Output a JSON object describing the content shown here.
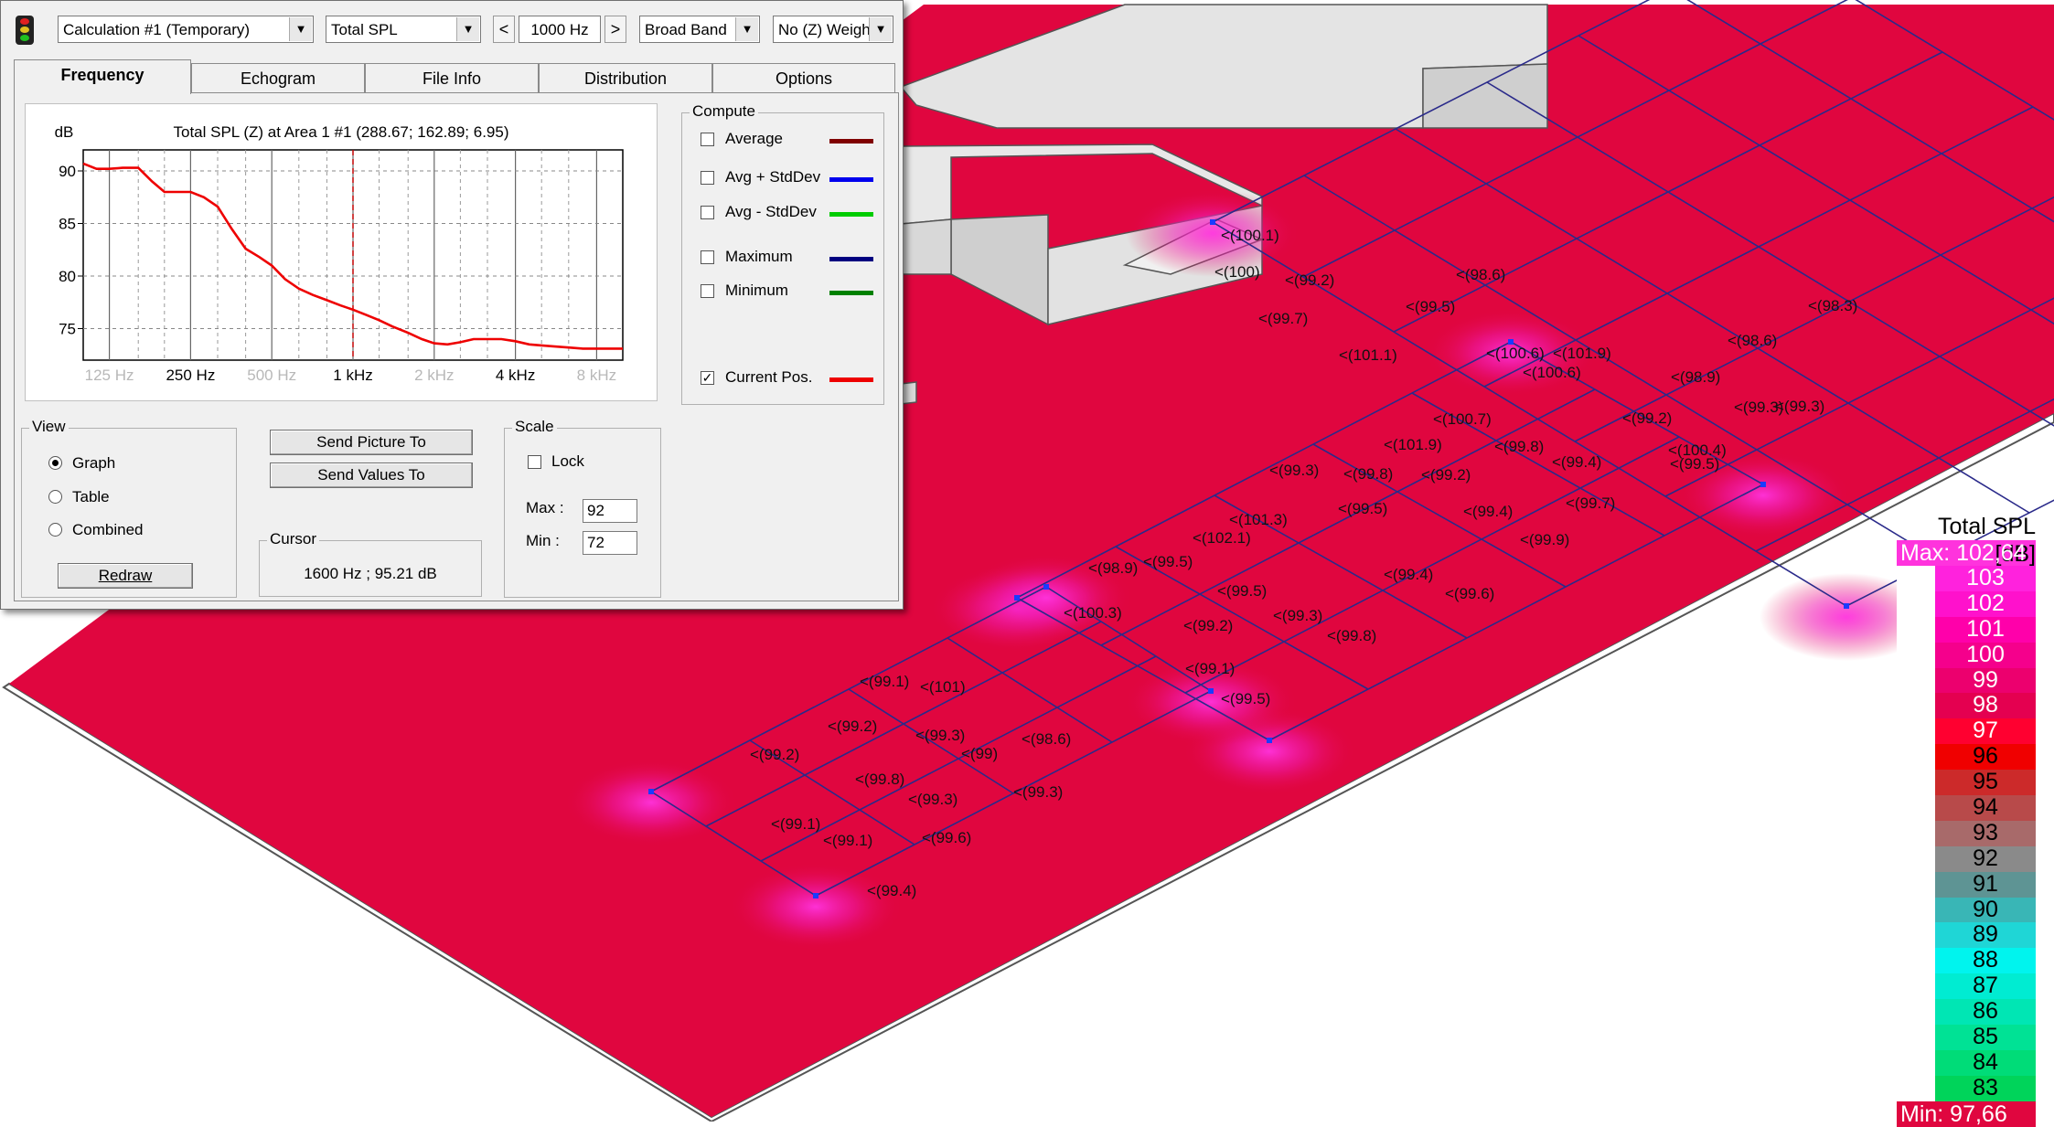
{
  "toolbar": {
    "app_icon": "traffic-light-icon",
    "calculation": "Calculation #1 (Temporary)",
    "quantity": "Total SPL",
    "frequency": "1000 Hz",
    "band": "Broad Band",
    "weighting": "No (Z) Weigh",
    "prev_label": "<",
    "next_label": ">"
  },
  "tabs": [
    {
      "label": "Frequency",
      "active": true
    },
    {
      "label": "Echogram",
      "active": false
    },
    {
      "label": "File Info",
      "active": false
    },
    {
      "label": "Distribution",
      "active": false
    },
    {
      "label": "Options",
      "active": false
    }
  ],
  "chart_data": {
    "type": "line",
    "title": "Total SPL (Z) at Area 1 #1  (288.67; 162.89; 6.95)",
    "ylabel": "dB",
    "xlabel": "",
    "x_scale": "log",
    "xlim_hz": [
      100,
      10000
    ],
    "ylim": [
      72,
      92
    ],
    "y_ticks": [
      90,
      85,
      80,
      75
    ],
    "x_ticks": [
      {
        "label": "125 Hz",
        "hz": 125,
        "dim": true
      },
      {
        "label": "250 Hz",
        "hz": 250,
        "dim": false
      },
      {
        "label": "500 Hz",
        "hz": 500,
        "dim": true
      },
      {
        "label": "1 kHz",
        "hz": 1000,
        "dim": false
      },
      {
        "label": "2 kHz",
        "hz": 2000,
        "dim": true
      },
      {
        "label": "4 kHz",
        "hz": 4000,
        "dim": false
      },
      {
        "label": "8 kHz",
        "hz": 8000,
        "dim": true
      }
    ],
    "grid": true,
    "cursor_hz": 1000,
    "series": [
      {
        "name": "Current Pos.",
        "color": "#ee0000",
        "x_hz": [
          100,
          112,
          125,
          140,
          160,
          180,
          200,
          224,
          250,
          280,
          315,
          355,
          400,
          450,
          500,
          560,
          630,
          710,
          800,
          900,
          1000,
          1120,
          1250,
          1400,
          1600,
          1800,
          2000,
          2240,
          2500,
          2800,
          3150,
          3550,
          4000,
          4500,
          5000,
          5600,
          6300,
          7100,
          8000,
          9000,
          10000
        ],
        "values": [
          90.7,
          90.2,
          90.2,
          90.3,
          90.3,
          89.0,
          88.0,
          88.0,
          88.0,
          87.5,
          86.6,
          84.5,
          82.6,
          81.8,
          81.0,
          79.7,
          78.8,
          78.2,
          77.7,
          77.2,
          76.8,
          76.3,
          75.8,
          75.2,
          74.6,
          74.0,
          73.6,
          73.5,
          73.7,
          74.0,
          74.0,
          74.0,
          73.8,
          73.5,
          73.4,
          73.3,
          73.2,
          73.1,
          73.1,
          73.1,
          73.1
        ]
      }
    ]
  },
  "compute": {
    "title": "Compute",
    "items": [
      {
        "label": "Average",
        "checked": false,
        "color": "#800000"
      },
      {
        "label": "Avg + StdDev",
        "checked": false,
        "color": "#0000ee"
      },
      {
        "label": "Avg - StdDev",
        "checked": false,
        "color": "#00cc00"
      },
      {
        "label": "Maximum",
        "checked": false,
        "color": "#000080"
      },
      {
        "label": "Minimum",
        "checked": false,
        "color": "#008000"
      },
      {
        "label": "Current Pos.",
        "checked": true,
        "color": "#ee0000"
      }
    ]
  },
  "view": {
    "title": "View",
    "options": [
      {
        "label": "Graph",
        "selected": true
      },
      {
        "label": "Table",
        "selected": false
      },
      {
        "label": "Combined",
        "selected": false
      }
    ],
    "redraw_label": "Redraw"
  },
  "actions": {
    "send_picture": "Send Picture To",
    "send_values": "Send Values To"
  },
  "cursor": {
    "title": "Cursor",
    "value": "1600 Hz ; 95.21 dB"
  },
  "scale": {
    "title": "Scale",
    "lock_label": "Lock",
    "lock": false,
    "max_label": "Max :",
    "max": "92",
    "min_label": "Min :",
    "min": "72"
  },
  "legend": {
    "title": "Total SPL [dB]",
    "max_label": "Max:  102,64",
    "min_label": "Min:  97,66",
    "max_color": "#ff33dd",
    "min_color": "#e0063f",
    "steps": [
      {
        "label": "103",
        "color": "#ff22dd"
      },
      {
        "label": "102",
        "color": "#ff11cc"
      },
      {
        "label": "101",
        "color": "#ff00aa"
      },
      {
        "label": "100",
        "color": "#f5008c"
      },
      {
        "label": "99",
        "color": "#ec006e"
      },
      {
        "label": "98",
        "color": "#e40050"
      },
      {
        "label": "97",
        "color": "#ff0030"
      },
      {
        "label": "96",
        "color": "#f00000"
      },
      {
        "label": "95",
        "color": "#cc2a2a"
      },
      {
        "label": "94",
        "color": "#b84a4a"
      },
      {
        "label": "93",
        "color": "#a86a6a"
      },
      {
        "label": "92",
        "color": "#8a8a8a"
      },
      {
        "label": "91",
        "color": "#5e9494"
      },
      {
        "label": "90",
        "color": "#39b6b6"
      },
      {
        "label": "89",
        "color": "#1fd6d6"
      },
      {
        "label": "88",
        "color": "#00f4ee"
      },
      {
        "label": "87",
        "color": "#00ecd2"
      },
      {
        "label": "86",
        "color": "#00e6b4"
      },
      {
        "label": "85",
        "color": "#00e295"
      },
      {
        "label": "84",
        "color": "#00dc78"
      },
      {
        "label": "83",
        "color": "#00d45a"
      }
    ]
  },
  "floor_color": "#e0063f",
  "map_labels": [
    "<(100.1)",
    "<(100)",
    "<(99.2)",
    "<(98.6)",
    "<(99.7)",
    "<(99.5)",
    "<(98.3)",
    "<(101.1)",
    "<(100.6)",
    "<(101.9)",
    "<(100.6)",
    "<(98.6)",
    "<(99.3)",
    "<(98.9)",
    "<(100.7)",
    "<(99.2)",
    "<(101.9)",
    "<(99.8)",
    "<(99.4)",
    "<(99.5)",
    "<(100.4)",
    "<(99.3)",
    "<(99.3)",
    "<(99.8)",
    "<(99.7)",
    "<(101.3)",
    "<(99.5)",
    "<(99.4)",
    "<(102.1)",
    "<(99.9)",
    "<(98.9)",
    "<(99.5)",
    "<(99.4)",
    "<(99.5)",
    "<(99.6)",
    "<(100.3)",
    "<(99.2)",
    "<(99.3)",
    "<(99.8)",
    "<(99.1)",
    "<(99.5)",
    "<(99.1)",
    "<(101)",
    "<(99.2)",
    "<(99.2)",
    "<(99.3)",
    "<(98.6)",
    "<(99)",
    "<(99.2)",
    "<(99.8)",
    "<(99.3)",
    "<(99.3)",
    "<(99.1)",
    "<(99.1)",
    "<(99.6)",
    "<(99.4)"
  ]
}
